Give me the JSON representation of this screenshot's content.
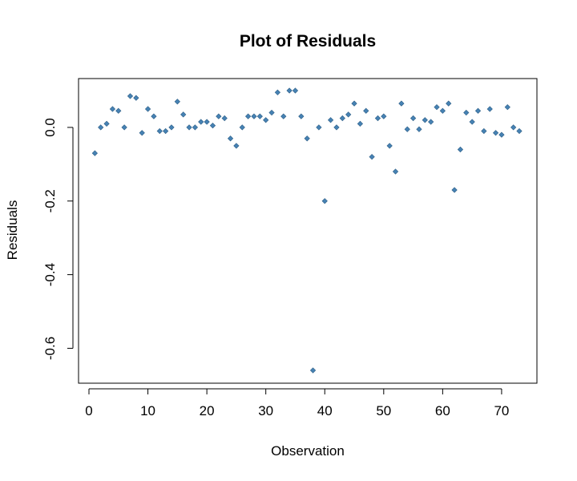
{
  "chart_data": {
    "type": "scatter",
    "title": "Plot of Residuals",
    "xlabel": "Observation",
    "ylabel": "Residuals",
    "xlim": [
      0,
      73
    ],
    "ylim": [
      -0.66,
      0.1
    ],
    "xticks": [
      0,
      10,
      20,
      30,
      40,
      50,
      60,
      70
    ],
    "xtick_labels": [
      "0",
      "10",
      "20",
      "30",
      "40",
      "50",
      "60",
      "70"
    ],
    "yticks": [
      0.0,
      -0.2,
      -0.4,
      -0.6
    ],
    "ytick_labels": [
      "0.0",
      "-0.2",
      "-0.4",
      "-0.6"
    ],
    "grid": false,
    "point_color": "#4682b4",
    "series": [
      {
        "x": [
          1,
          2,
          3,
          4,
          5,
          6,
          7,
          8,
          9,
          10,
          11,
          12,
          13,
          14,
          15,
          16,
          17,
          18,
          19,
          20,
          21,
          22,
          23,
          24,
          25,
          26,
          27,
          28,
          29,
          30,
          31,
          32,
          33,
          34,
          35,
          36,
          37,
          38,
          39,
          40,
          41,
          42,
          43,
          44,
          45,
          46,
          47,
          48,
          49,
          50,
          51,
          52,
          53,
          54,
          55,
          56,
          57,
          58,
          59,
          60,
          61,
          62,
          63,
          64,
          65,
          66,
          67,
          68,
          69,
          70,
          71,
          72,
          73
        ],
        "y": [
          -0.07,
          0.0,
          0.01,
          0.05,
          0.045,
          0.0,
          0.085,
          0.08,
          -0.015,
          0.05,
          0.03,
          -0.01,
          -0.01,
          0.0,
          0.07,
          0.035,
          0.0,
          0.0,
          0.015,
          0.015,
          0.005,
          0.03,
          0.025,
          -0.03,
          -0.05,
          0.0,
          0.03,
          0.03,
          0.03,
          0.02,
          0.04,
          0.095,
          0.03,
          0.1,
          0.1,
          0.03,
          -0.03,
          -0.66,
          0.0,
          -0.2,
          0.02,
          0.0,
          0.025,
          0.035,
          0.065,
          0.01,
          0.045,
          -0.08,
          0.025,
          0.03,
          -0.05,
          -0.12,
          0.065,
          -0.005,
          0.025,
          -0.005,
          0.02,
          0.015,
          0.055,
          0.045,
          0.065,
          -0.17,
          -0.06,
          0.04,
          0.015,
          0.045,
          -0.01,
          0.05,
          -0.015,
          -0.02,
          0.055,
          0.0,
          -0.01
        ]
      }
    ]
  }
}
